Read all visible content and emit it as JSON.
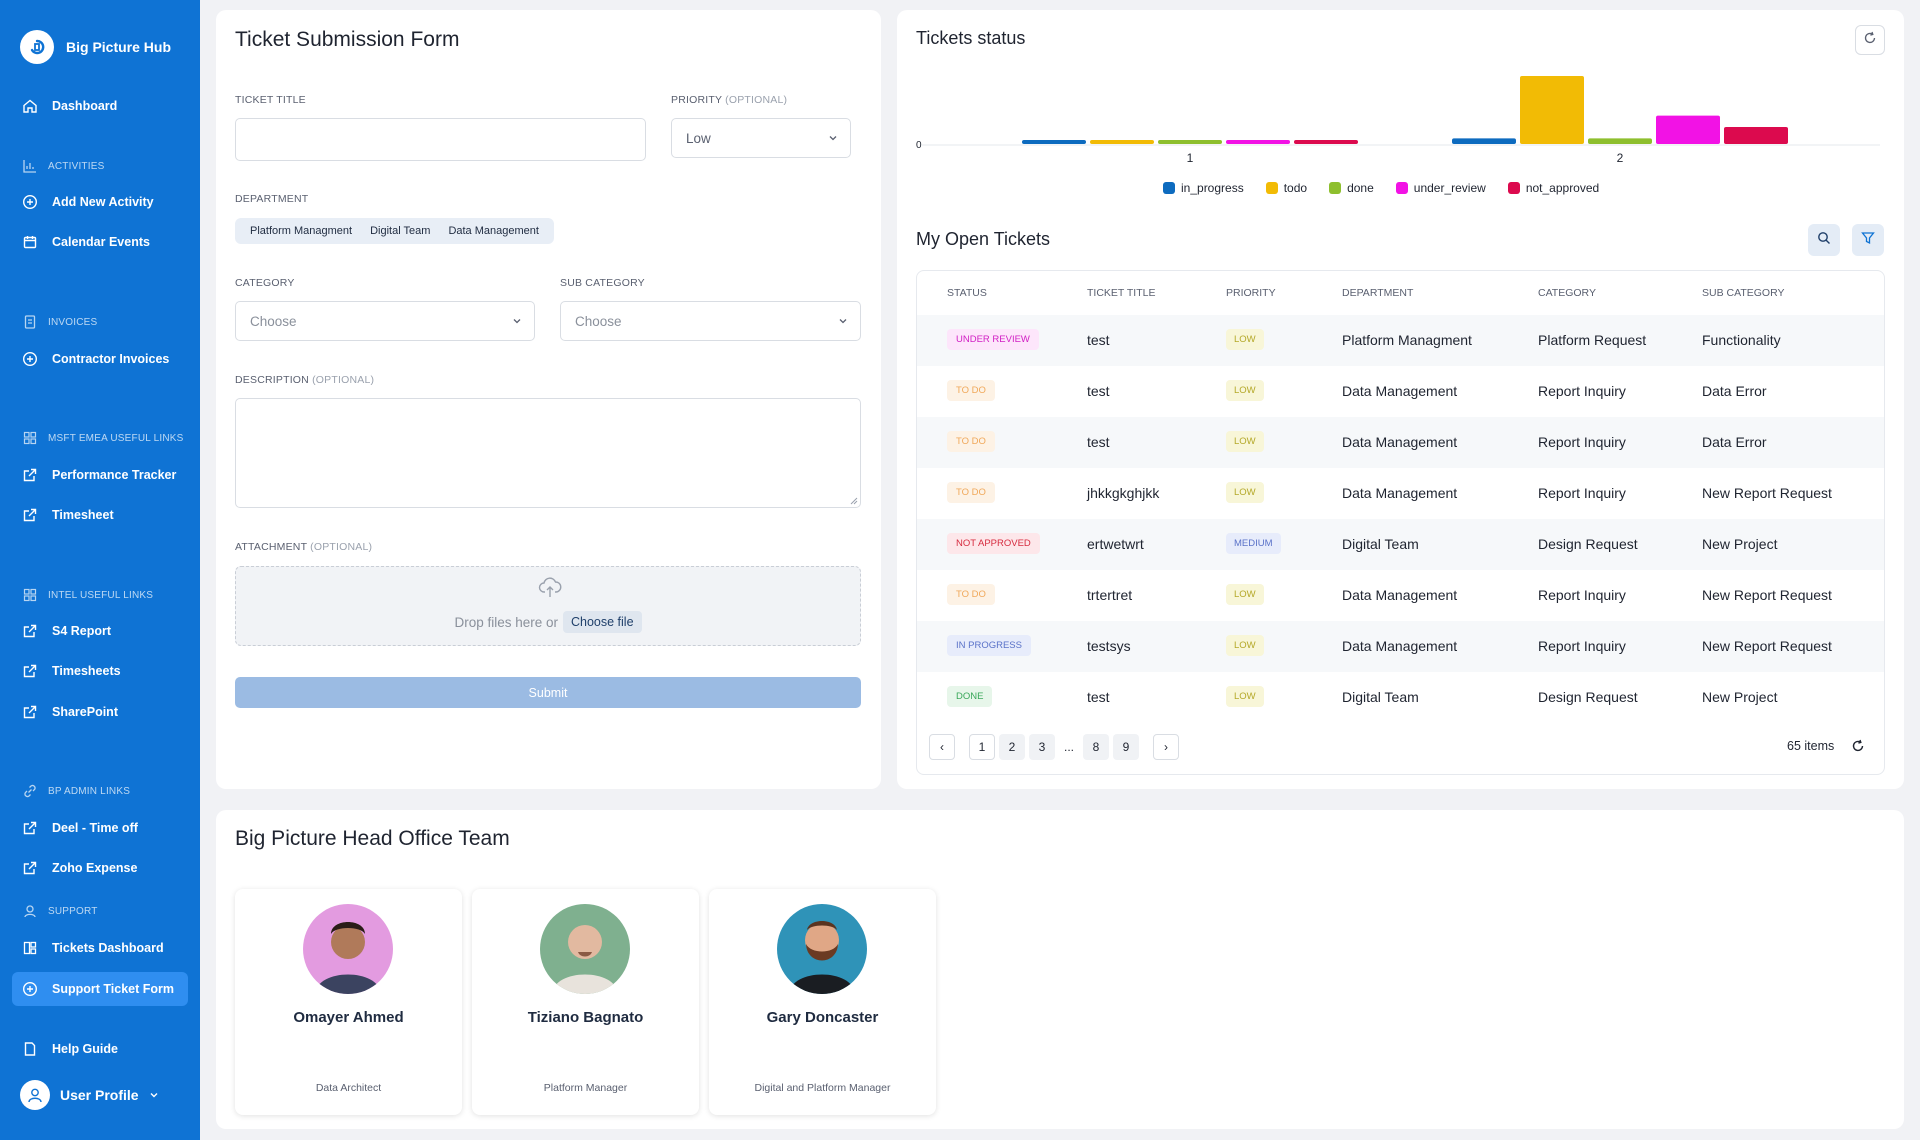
{
  "app": {
    "name": "Big Picture Hub"
  },
  "sidebar": {
    "items": [
      {
        "label": "Dashboard"
      },
      {
        "label": "Add New Activity"
      },
      {
        "label": "Calendar Events"
      },
      {
        "label": "Contractor Invoices"
      },
      {
        "label": "Performance Tracker"
      },
      {
        "label": "Timesheet"
      },
      {
        "label": "S4 Report"
      },
      {
        "label": "Timesheets"
      },
      {
        "label": "SharePoint"
      },
      {
        "label": "Deel - Time off"
      },
      {
        "label": "Zoho Expense"
      },
      {
        "label": "Tickets Dashboard"
      },
      {
        "label": "Support Ticket Form"
      },
      {
        "label": "Help Guide"
      }
    ],
    "sections": [
      {
        "label": "ACTIVITIES"
      },
      {
        "label": "INVOICES"
      },
      {
        "label": "MSFT EMEA USEFUL LINKS"
      },
      {
        "label": "INTEL USEFUL LINKS"
      },
      {
        "label": "BP ADMIN LINKS"
      },
      {
        "label": "SUPPORT"
      }
    ],
    "user_profile": "User Profile"
  },
  "form": {
    "title": "Ticket Submission Form",
    "ticket_title_label": "TICKET TITLE",
    "ticket_title_value": "",
    "priority_label": "PRIORITY",
    "optional": "(OPTIONAL)",
    "priority_value": "Low",
    "department_label": "DEPARTMENT",
    "departments": [
      "Platform Managment",
      "Digital Team",
      "Data Management"
    ],
    "category_label": "CATEGORY",
    "category_placeholder": "Choose",
    "subcategory_label": "SUB CATEGORY",
    "subcategory_placeholder": "Choose",
    "description_label": "DESCRIPTION",
    "attachment_label": "ATTACHMENT",
    "drop_text": "Drop files here or",
    "choose_file": "Choose file",
    "submit": "Submit"
  },
  "status_chart": {
    "title": "Tickets status"
  },
  "chart_data": {
    "type": "bar",
    "categories": [
      "1",
      "2"
    ],
    "series": [
      {
        "name": "in_progress",
        "values": [
          0,
          1
        ]
      },
      {
        "name": "todo",
        "values": [
          0,
          12
        ]
      },
      {
        "name": "done",
        "values": [
          0,
          1
        ]
      },
      {
        "name": "under_review",
        "values": [
          0,
          5
        ]
      },
      {
        "name": "not_approved",
        "values": [
          0,
          3
        ]
      }
    ],
    "y_ticks": [
      "0"
    ],
    "legend_position": "bottom",
    "colors": [
      "#0d6bbf",
      "#f2bb05",
      "#8ebf2e",
      "#f212e5",
      "#dc0a4e"
    ]
  },
  "tickets": {
    "title": "My Open Tickets",
    "columns": [
      "STATUS",
      "TICKET TITLE",
      "PRIORITY",
      "DEPARTMENT",
      "CATEGORY",
      "SUB CATEGORY"
    ],
    "rows": [
      {
        "status": "UNDER REVIEW",
        "title": "test",
        "priority": "LOW",
        "department": "Platform Managment",
        "category": "Platform Request",
        "subcategory": "Functionality"
      },
      {
        "status": "TO DO",
        "title": "test",
        "priority": "LOW",
        "department": "Data Management",
        "category": "Report Inquiry",
        "subcategory": "Data Error"
      },
      {
        "status": "TO DO",
        "title": "test",
        "priority": "LOW",
        "department": "Data Management",
        "category": "Report Inquiry",
        "subcategory": "Data Error"
      },
      {
        "status": "TO DO",
        "title": "jhkkgkghjkk",
        "priority": "LOW",
        "department": "Data Management",
        "category": "Report Inquiry",
        "subcategory": "New Report Request"
      },
      {
        "status": "NOT APPROVED",
        "title": "ertwetwrt",
        "priority": "MEDIUM",
        "department": "Digital Team",
        "category": "Design Request",
        "subcategory": "New Project"
      },
      {
        "status": "TO DO",
        "title": "trtertret",
        "priority": "LOW",
        "department": "Data Management",
        "category": "Report Inquiry",
        "subcategory": "New Report Request"
      },
      {
        "status": "IN PROGRESS",
        "title": "testsys",
        "priority": "LOW",
        "department": "Data Management",
        "category": "Report Inquiry",
        "subcategory": "New Report Request"
      },
      {
        "status": "DONE",
        "title": "test",
        "priority": "LOW",
        "department": "Digital Team",
        "category": "Design Request",
        "subcategory": "New Project"
      }
    ],
    "pages": [
      "1",
      "2",
      "3",
      "...",
      "8",
      "9"
    ],
    "prev": "‹",
    "next": "›",
    "count": "65 items"
  },
  "team": {
    "title": "Big Picture Head Office Team",
    "members": [
      {
        "name": "Omayer Ahmed",
        "role": "Data Architect"
      },
      {
        "name": "Tiziano Bagnato",
        "role": "Platform Manager"
      },
      {
        "name": "Gary Doncaster",
        "role": "Digital and Platform Manager"
      }
    ]
  }
}
